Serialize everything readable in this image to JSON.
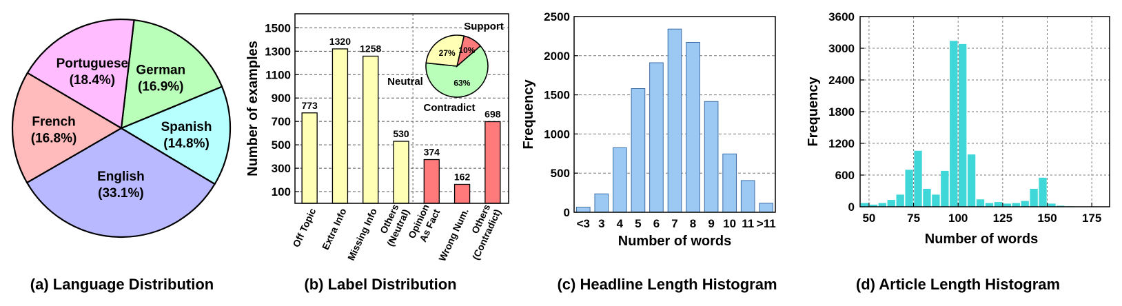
{
  "captions": {
    "a": "(a) Language Distribution",
    "b": "(b) Label Distribution",
    "c": "(c) Headline Length Histogram",
    "d": "(d) Article Length Histogram"
  },
  "chart_data": [
    {
      "type": "pie",
      "title": "(a) Language Distribution",
      "slices": [
        {
          "label": "English",
          "pct_label": "(33.1%)",
          "value": 33.1,
          "color": "#b9b9ff"
        },
        {
          "label": "Spanish",
          "pct_label": "(14.8%)",
          "value": 14.8,
          "color": "#b7ffff"
        },
        {
          "label": "German",
          "pct_label": "(16.9%)",
          "value": 16.9,
          "color": "#b9ffb9"
        },
        {
          "label": "Portuguese",
          "pct_label": "(18.4%)",
          "value": 18.4,
          "color": "#ffbcff"
        },
        {
          "label": "French",
          "pct_label": "(16.8%)",
          "value": 16.8,
          "color": "#ffbbbb"
        }
      ]
    },
    {
      "type": "bar",
      "title": "(b) Label Distribution",
      "ylabel": "Number of examples",
      "ylim": [
        0,
        1620
      ],
      "yticks": [
        100,
        300,
        500,
        700,
        900,
        1100,
        1300,
        1500
      ],
      "grid": true,
      "categories": [
        "Off Topic",
        "Extra Info",
        "Missing Info",
        "Others\n(Neutral)",
        "Opinion\nAs Fact",
        "Wrong Num.",
        "Others\n(Contradict)"
      ],
      "values": [
        773,
        1320,
        1258,
        530,
        374,
        162,
        698
      ],
      "value_labels": [
        "773",
        "1320",
        "1258",
        "530",
        "374",
        "162",
        "698"
      ],
      "colors": [
        "#ffffb6",
        "#ffffb6",
        "#ffffb6",
        "#ffffb6",
        "#ff7a7a",
        "#ff7a7a",
        "#ff7a7a"
      ],
      "inset_pie": {
        "slices": [
          {
            "label": "Support",
            "pct_label": "63%",
            "value": 63,
            "color": "#b9ffb9"
          },
          {
            "label": "Contradict",
            "pct_label": "10%",
            "value": 10,
            "color": "#ff7a7a"
          },
          {
            "label": "Neutral",
            "pct_label": "27%",
            "value": 27,
            "color": "#ffffb6"
          }
        ]
      }
    },
    {
      "type": "bar",
      "title": "(c) Headline Length Histogram",
      "xlabel": "Number of words",
      "ylabel": "Frequency",
      "ylim": [
        0,
        2500
      ],
      "yticks": [
        0,
        500,
        1000,
        1500,
        2000,
        2500
      ],
      "grid": true,
      "categories": [
        "<3",
        "3",
        "4",
        "5",
        "6",
        "7",
        "8",
        "9",
        "10",
        "11",
        ">11"
      ],
      "values": [
        65,
        235,
        825,
        1580,
        1910,
        2340,
        2170,
        1415,
        745,
        405,
        115
      ],
      "color": "#9cc8f4"
    },
    {
      "type": "bar",
      "title": "(d) Article Length Histogram",
      "xlabel": "Number of words",
      "ylabel": "Frequency",
      "xlim": [
        45,
        185
      ],
      "ylim": [
        0,
        3600
      ],
      "xticks": [
        50,
        75,
        100,
        125,
        150,
        175
      ],
      "yticks": [
        0,
        600,
        1200,
        1800,
        2400,
        3000,
        3600
      ],
      "grid": true,
      "bin_width": 5,
      "x": [
        47.5,
        52.5,
        57.5,
        62.5,
        67.5,
        72.5,
        77.5,
        82.5,
        87.5,
        92.5,
        97.5,
        102.5,
        107.5,
        112.5,
        117.5,
        122.5,
        127.5,
        132.5,
        137.5,
        142.5,
        147.5,
        152.5,
        157.5,
        162.5,
        167.5,
        172.5,
        177.5,
        182.5
      ],
      "values": [
        70,
        40,
        70,
        130,
        230,
        700,
        1060,
        340,
        230,
        680,
        3140,
        3080,
        990,
        140,
        70,
        90,
        60,
        70,
        110,
        340,
        550,
        60,
        20,
        10,
        0,
        0,
        0,
        0
      ],
      "color": "#3fd7d7"
    }
  ]
}
